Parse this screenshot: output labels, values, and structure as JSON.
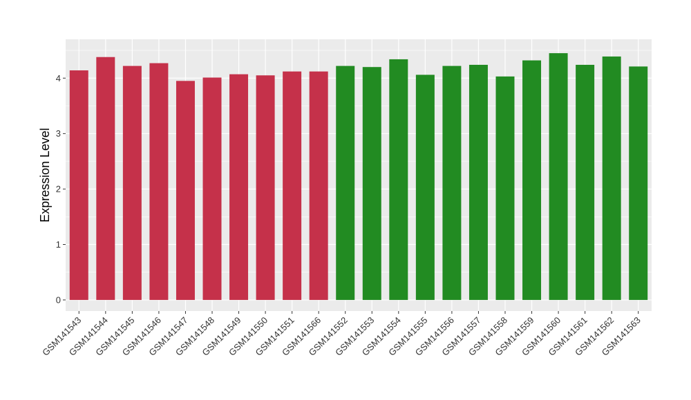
{
  "chart_data": {
    "type": "bar",
    "title": "",
    "xlabel": "",
    "ylabel": "Expression Level",
    "ylim": [
      -0.2,
      4.7
    ],
    "yticks": [
      0,
      1,
      2,
      3,
      4
    ],
    "grid": true,
    "legend": "none",
    "colors": {
      "panel_bg": "#EBEBEB",
      "grid": "#FFFFFF",
      "group1": "#C5314A",
      "group2": "#228B22"
    },
    "categories": [
      "GSM141543",
      "GSM141544",
      "GSM141545",
      "GSM141546",
      "GSM141547",
      "GSM141548",
      "GSM141549",
      "GSM141550",
      "GSM141551",
      "GSM141566",
      "GSM141552",
      "GSM141553",
      "GSM141554",
      "GSM141555",
      "GSM141556",
      "GSM141557",
      "GSM141558",
      "GSM141559",
      "GSM141560",
      "GSM141561",
      "GSM141562",
      "GSM141563"
    ],
    "values": [
      4.14,
      4.38,
      4.22,
      4.27,
      3.95,
      4.01,
      4.07,
      4.05,
      4.12,
      4.12,
      4.22,
      4.2,
      4.34,
      4.06,
      4.22,
      4.24,
      4.03,
      4.32,
      4.45,
      4.24,
      4.39,
      4.21
    ],
    "groups": [
      1,
      1,
      1,
      1,
      1,
      1,
      1,
      1,
      1,
      1,
      2,
      2,
      2,
      2,
      2,
      2,
      2,
      2,
      2,
      2,
      2,
      2
    ]
  }
}
